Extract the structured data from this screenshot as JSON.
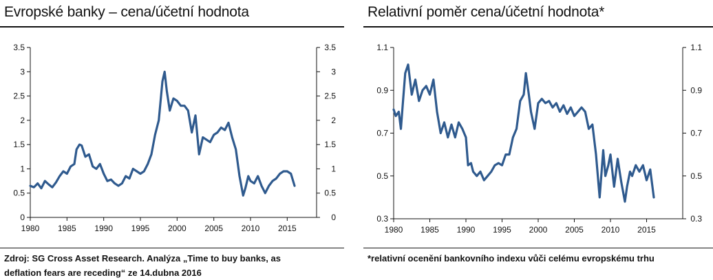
{
  "left": {
    "title": "Evropské banky – cena/účetní hodnota",
    "note_line1": "Zdroj: SG Cross Asset Research. Analýza „Time to buy banks, as",
    "note_line2": "deflation fears are receding“ ze 14.dubna 2016"
  },
  "right": {
    "title": "Relativní poměr cena/účetní hodnota*",
    "note_line1": "*relativní ocenění bankovního indexu vůči celému evropskému trhu"
  },
  "chart_data": [
    {
      "type": "line",
      "title": "Evropské banky – cena/účetní hodnota",
      "color": "#2f5a8e",
      "xlim": [
        1980,
        2019
      ],
      "ylim": [
        0,
        3.5
      ],
      "x_ticks": [
        "1980",
        "1985",
        "1990",
        "1995",
        "2000",
        "2005",
        "2010",
        "2015"
      ],
      "y_ticks": [
        "0",
        "0.5",
        "1",
        "1.5",
        "2",
        "2.5",
        "3",
        "3.5"
      ],
      "grid": false,
      "series": [
        {
          "x": [
            1980.0,
            1980.5,
            1981.0,
            1981.5,
            1982.0,
            1982.5,
            1983.0,
            1983.5,
            1984.0,
            1984.5,
            1985.0,
            1985.5,
            1986.0,
            1986.3,
            1986.7,
            1987.0,
            1987.5,
            1988.0,
            1988.5,
            1989.0,
            1989.5,
            1990.0,
            1990.5,
            1991.0,
            1991.5,
            1992.0,
            1992.5,
            1993.0,
            1993.5,
            1994.0,
            1994.5,
            1995.0,
            1995.5,
            1996.0,
            1996.5,
            1997.0,
            1997.5,
            1998.0,
            1998.3,
            1998.6,
            1999.0,
            1999.5,
            2000.0,
            2000.5,
            2001.0,
            2001.5,
            2002.0,
            2002.5,
            2003.0,
            2003.5,
            2004.0,
            2004.5,
            2005.0,
            2005.5,
            2006.0,
            2006.5,
            2007.0,
            2007.5,
            2008.0,
            2008.5,
            2009.0,
            2009.3,
            2009.7,
            2010.0,
            2010.5,
            2011.0,
            2011.5,
            2012.0,
            2012.5,
            2013.0,
            2013.5,
            2014.0,
            2014.5,
            2015.0,
            2015.5,
            2016.0
          ],
          "y": [
            0.65,
            0.62,
            0.7,
            0.6,
            0.75,
            0.68,
            0.62,
            0.72,
            0.85,
            0.95,
            0.9,
            1.05,
            1.1,
            1.4,
            1.5,
            1.48,
            1.25,
            1.3,
            1.05,
            1.0,
            1.1,
            0.9,
            0.75,
            0.78,
            0.7,
            0.65,
            0.7,
            0.85,
            0.8,
            1.0,
            0.95,
            0.9,
            0.95,
            1.1,
            1.3,
            1.7,
            2.0,
            2.8,
            3.0,
            2.6,
            2.2,
            2.45,
            2.4,
            2.3,
            2.3,
            2.2,
            1.75,
            2.1,
            1.3,
            1.65,
            1.6,
            1.55,
            1.7,
            1.75,
            1.85,
            1.8,
            1.95,
            1.65,
            1.4,
            0.85,
            0.45,
            0.6,
            0.85,
            0.75,
            0.7,
            0.85,
            0.65,
            0.5,
            0.65,
            0.75,
            0.8,
            0.9,
            0.95,
            0.95,
            0.9,
            0.65
          ]
        }
      ]
    },
    {
      "type": "line",
      "title": "Relativní poměr cena/účetní hodnota*",
      "color": "#2f5a8e",
      "xlim": [
        1980,
        2020
      ],
      "ylim": [
        0.3,
        1.1
      ],
      "x_ticks": [
        "1980",
        "1985",
        "1990",
        "1995",
        "2000",
        "2005",
        "2010",
        "2015"
      ],
      "y_ticks": [
        "0.3",
        "0.5",
        "0.7",
        "0.9",
        "1.1"
      ],
      "grid": false,
      "series": [
        {
          "x": [
            1980.0,
            1980.3,
            1980.7,
            1981.0,
            1981.3,
            1981.6,
            1982.0,
            1982.5,
            1983.0,
            1983.5,
            1984.0,
            1984.5,
            1985.0,
            1985.5,
            1986.0,
            1986.5,
            1987.0,
            1987.5,
            1988.0,
            1988.5,
            1989.0,
            1989.5,
            1990.0,
            1990.3,
            1990.7,
            1991.0,
            1991.5,
            1992.0,
            1992.5,
            1993.0,
            1993.5,
            1994.0,
            1994.5,
            1995.0,
            1995.5,
            1996.0,
            1996.5,
            1997.0,
            1997.5,
            1998.0,
            1998.3,
            1998.7,
            1999.0,
            1999.5,
            2000.0,
            2000.5,
            2001.0,
            2001.5,
            2002.0,
            2002.5,
            2003.0,
            2003.5,
            2004.0,
            2004.5,
            2005.0,
            2005.5,
            2006.0,
            2006.5,
            2007.0,
            2007.5,
            2008.0,
            2008.5,
            2009.0,
            2009.3,
            2009.7,
            2010.0,
            2010.5,
            2011.0,
            2011.5,
            2012.0,
            2012.3,
            2012.7,
            2013.0,
            2013.5,
            2014.0,
            2014.5,
            2015.0,
            2015.5,
            2016.0
          ],
          "y": [
            0.81,
            0.78,
            0.8,
            0.72,
            0.85,
            0.98,
            1.02,
            0.88,
            0.95,
            0.85,
            0.9,
            0.92,
            0.88,
            0.95,
            0.8,
            0.7,
            0.75,
            0.68,
            0.74,
            0.68,
            0.75,
            0.72,
            0.68,
            0.55,
            0.56,
            0.52,
            0.5,
            0.52,
            0.48,
            0.5,
            0.52,
            0.55,
            0.56,
            0.55,
            0.6,
            0.6,
            0.68,
            0.72,
            0.85,
            0.88,
            0.98,
            0.88,
            0.8,
            0.72,
            0.84,
            0.86,
            0.84,
            0.85,
            0.82,
            0.84,
            0.8,
            0.83,
            0.79,
            0.82,
            0.78,
            0.8,
            0.82,
            0.8,
            0.72,
            0.74,
            0.6,
            0.4,
            0.62,
            0.5,
            0.55,
            0.6,
            0.45,
            0.58,
            0.47,
            0.38,
            0.45,
            0.52,
            0.5,
            0.55,
            0.52,
            0.55,
            0.48,
            0.53,
            0.4
          ]
        }
      ]
    }
  ]
}
